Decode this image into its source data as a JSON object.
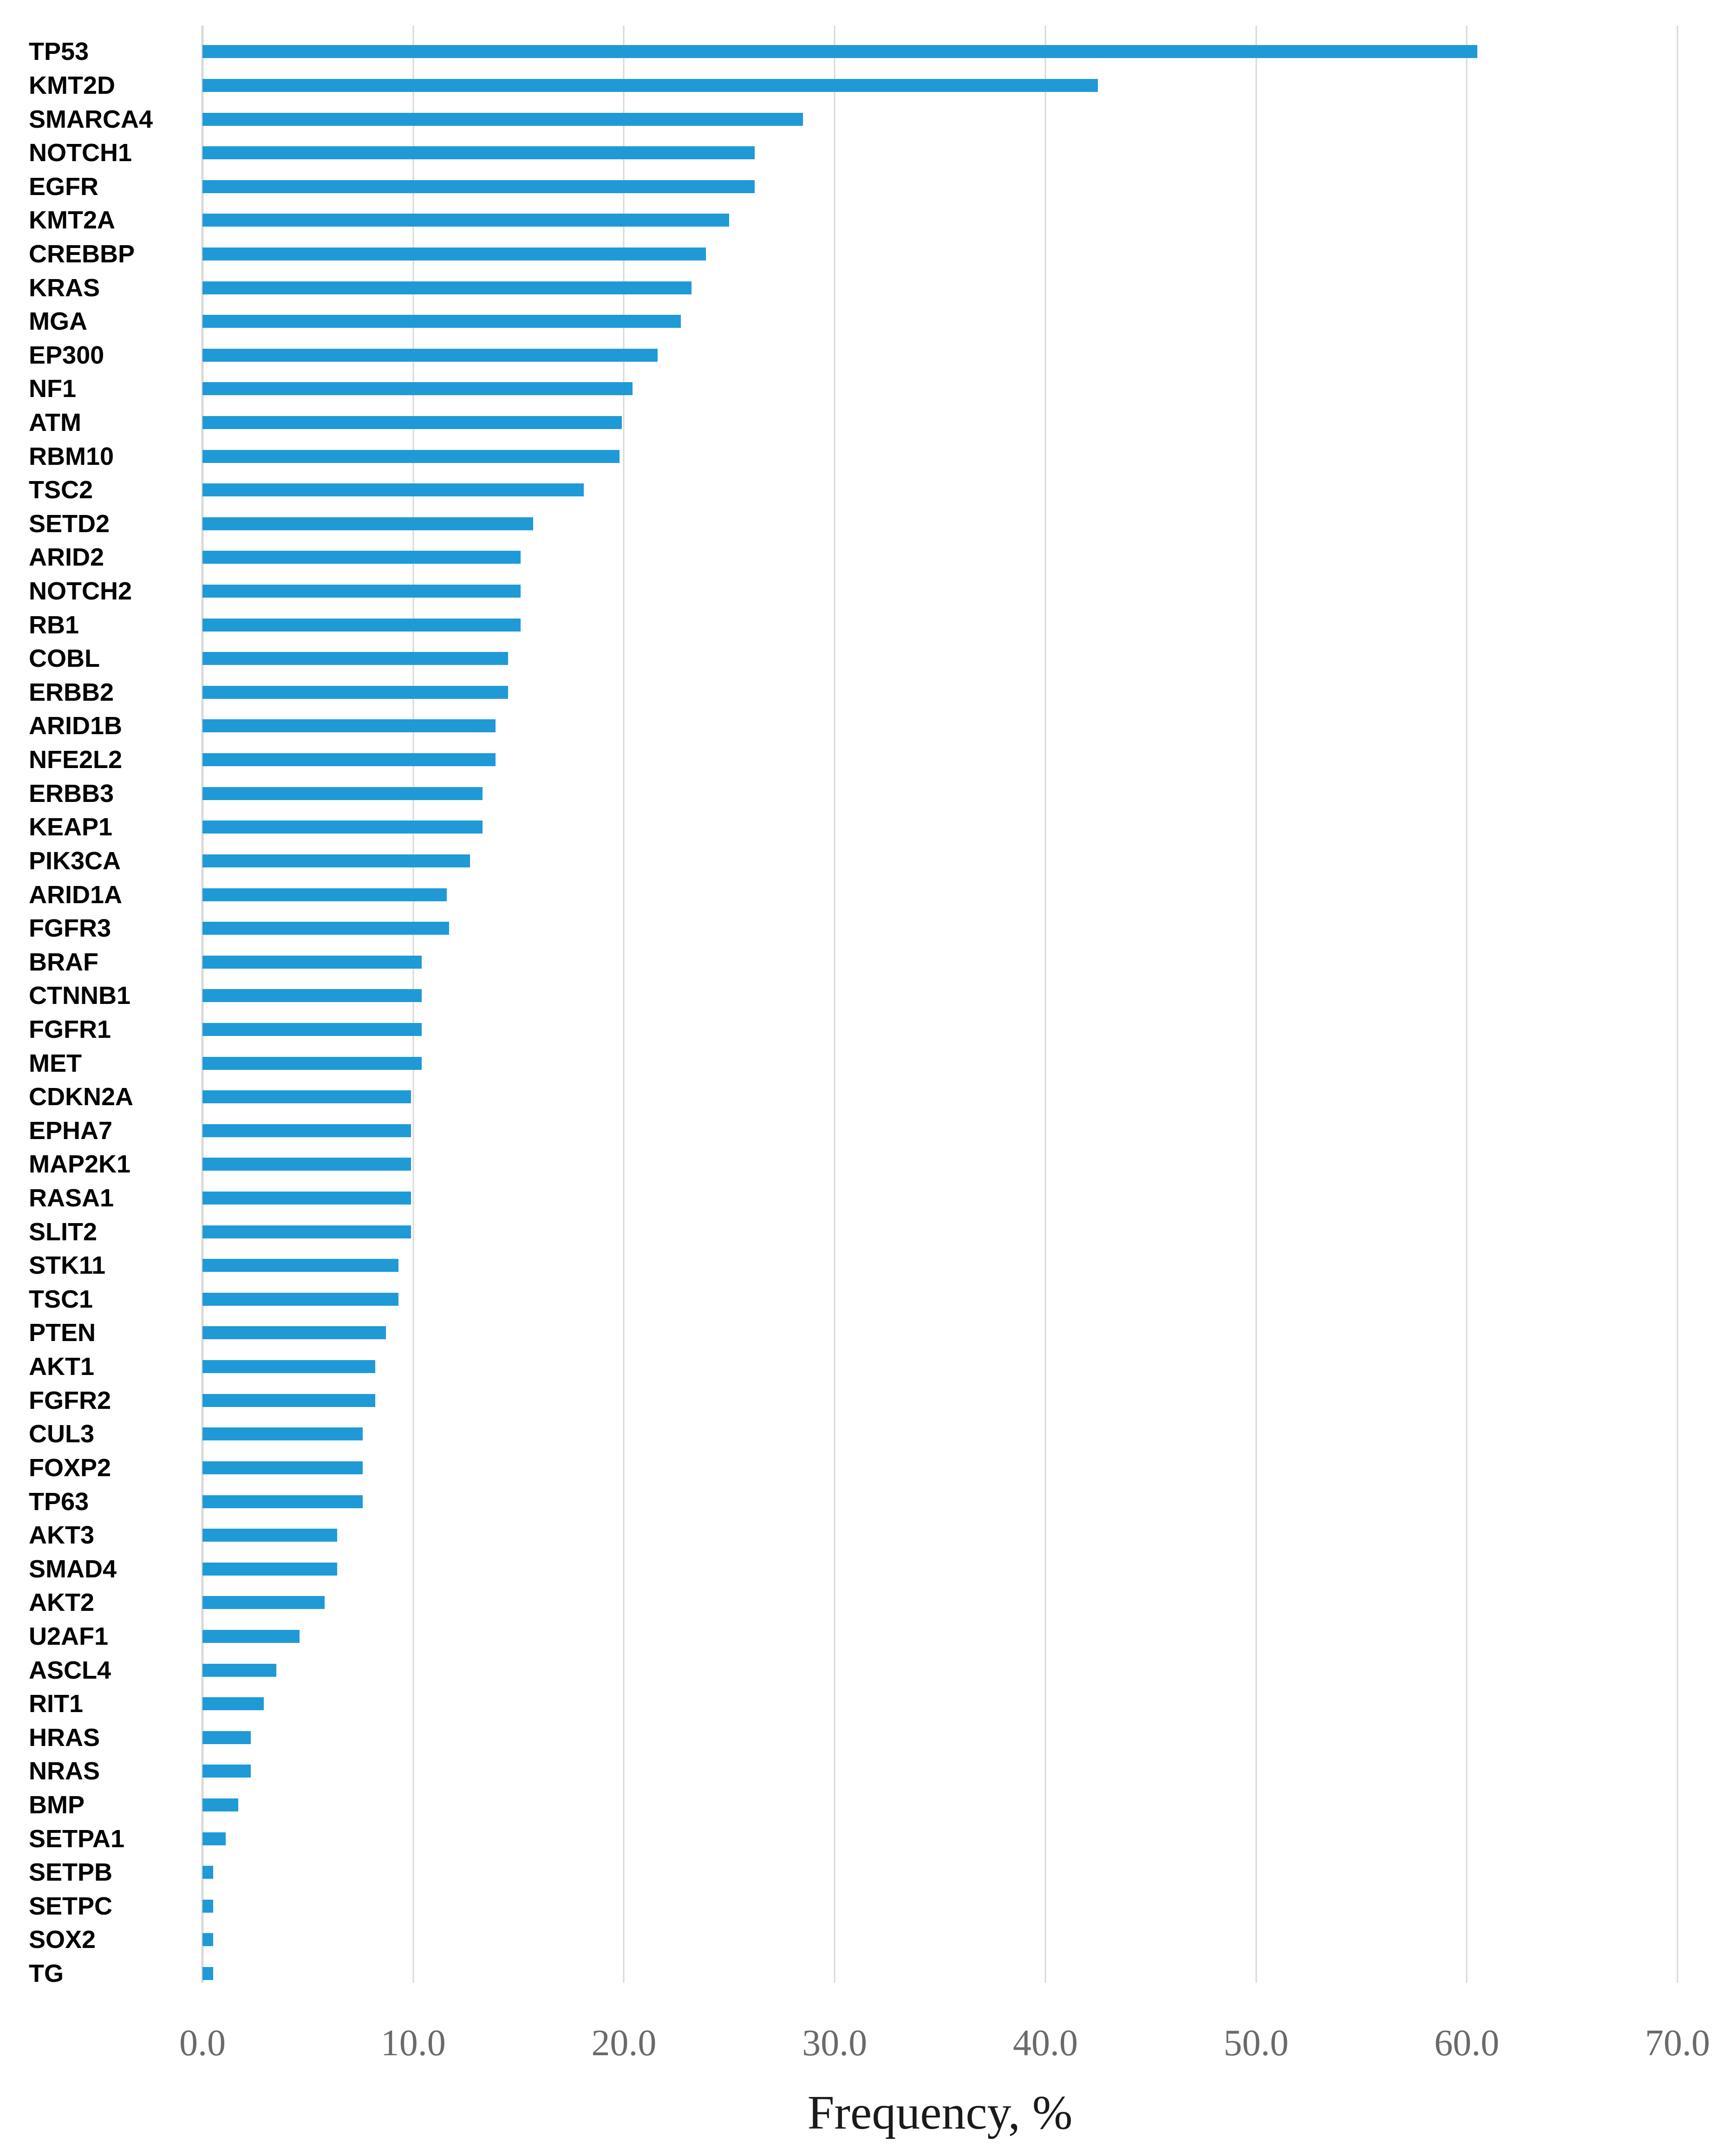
{
  "chart_data": {
    "type": "bar",
    "orientation": "horizontal",
    "title": "",
    "xlabel": "Frequency, %",
    "ylabel": "",
    "xlim": [
      0,
      70
    ],
    "x_ticks": [
      "0.0",
      "10.0",
      "20.0",
      "30.0",
      "40.0",
      "50.0",
      "60.0",
      "70.0"
    ],
    "grid": true,
    "legend": false,
    "bar_color": "#1F9AD6",
    "gridline_color": "#D9D9D9",
    "tick_color": "#6A6A6A",
    "title_color": "#1A1A1A",
    "categories": [
      "TP53",
      "KMT2D",
      "SMARCA4",
      "NOTCH1",
      "EGFR",
      "KMT2A",
      "CREBBP",
      "KRAS",
      "MGA",
      "EP300",
      "NF1",
      "ATM",
      "RBM10",
      "TSC2",
      "SETD2",
      "ARID2",
      "NOTCH2",
      "RB1",
      "COBL",
      "ERBB2",
      "ARID1B",
      "NFE2L2",
      "ERBB3",
      "KEAP1",
      "PIK3CA",
      "ARID1A",
      "FGFR3",
      "BRAF",
      "CTNNB1",
      "FGFR1",
      "MET",
      "CDKN2A",
      "EPHA7",
      "MAP2K1",
      "RASA1",
      "SLIT2",
      "STK11",
      "TSC1",
      "PTEN",
      "AKT1",
      "FGFR2",
      "CUL3",
      "FOXP2",
      "TP63",
      "AKT3",
      "SMAD4",
      "AKT2",
      "U2AF1",
      "ASCL4",
      "RIT1",
      "HRAS",
      "NRAS",
      "BMP",
      "SETPA1",
      "SETPB",
      "SETPC",
      "SOX2",
      "TG"
    ],
    "values": [
      60.5,
      42.5,
      28.5,
      26.2,
      26.2,
      25.0,
      23.9,
      23.2,
      22.7,
      21.6,
      20.4,
      19.9,
      19.8,
      18.1,
      15.7,
      15.1,
      15.1,
      15.1,
      14.5,
      14.5,
      13.9,
      13.9,
      13.3,
      13.3,
      12.7,
      11.6,
      11.7,
      10.4,
      10.4,
      10.4,
      10.4,
      9.9,
      9.9,
      9.9,
      9.9,
      9.9,
      9.3,
      9.3,
      8.7,
      8.2,
      8.2,
      7.6,
      7.6,
      7.6,
      6.4,
      6.4,
      5.8,
      4.6,
      3.5,
      2.9,
      2.3,
      2.3,
      1.7,
      1.1,
      0.5,
      0.5,
      0.5,
      0.5
    ]
  }
}
